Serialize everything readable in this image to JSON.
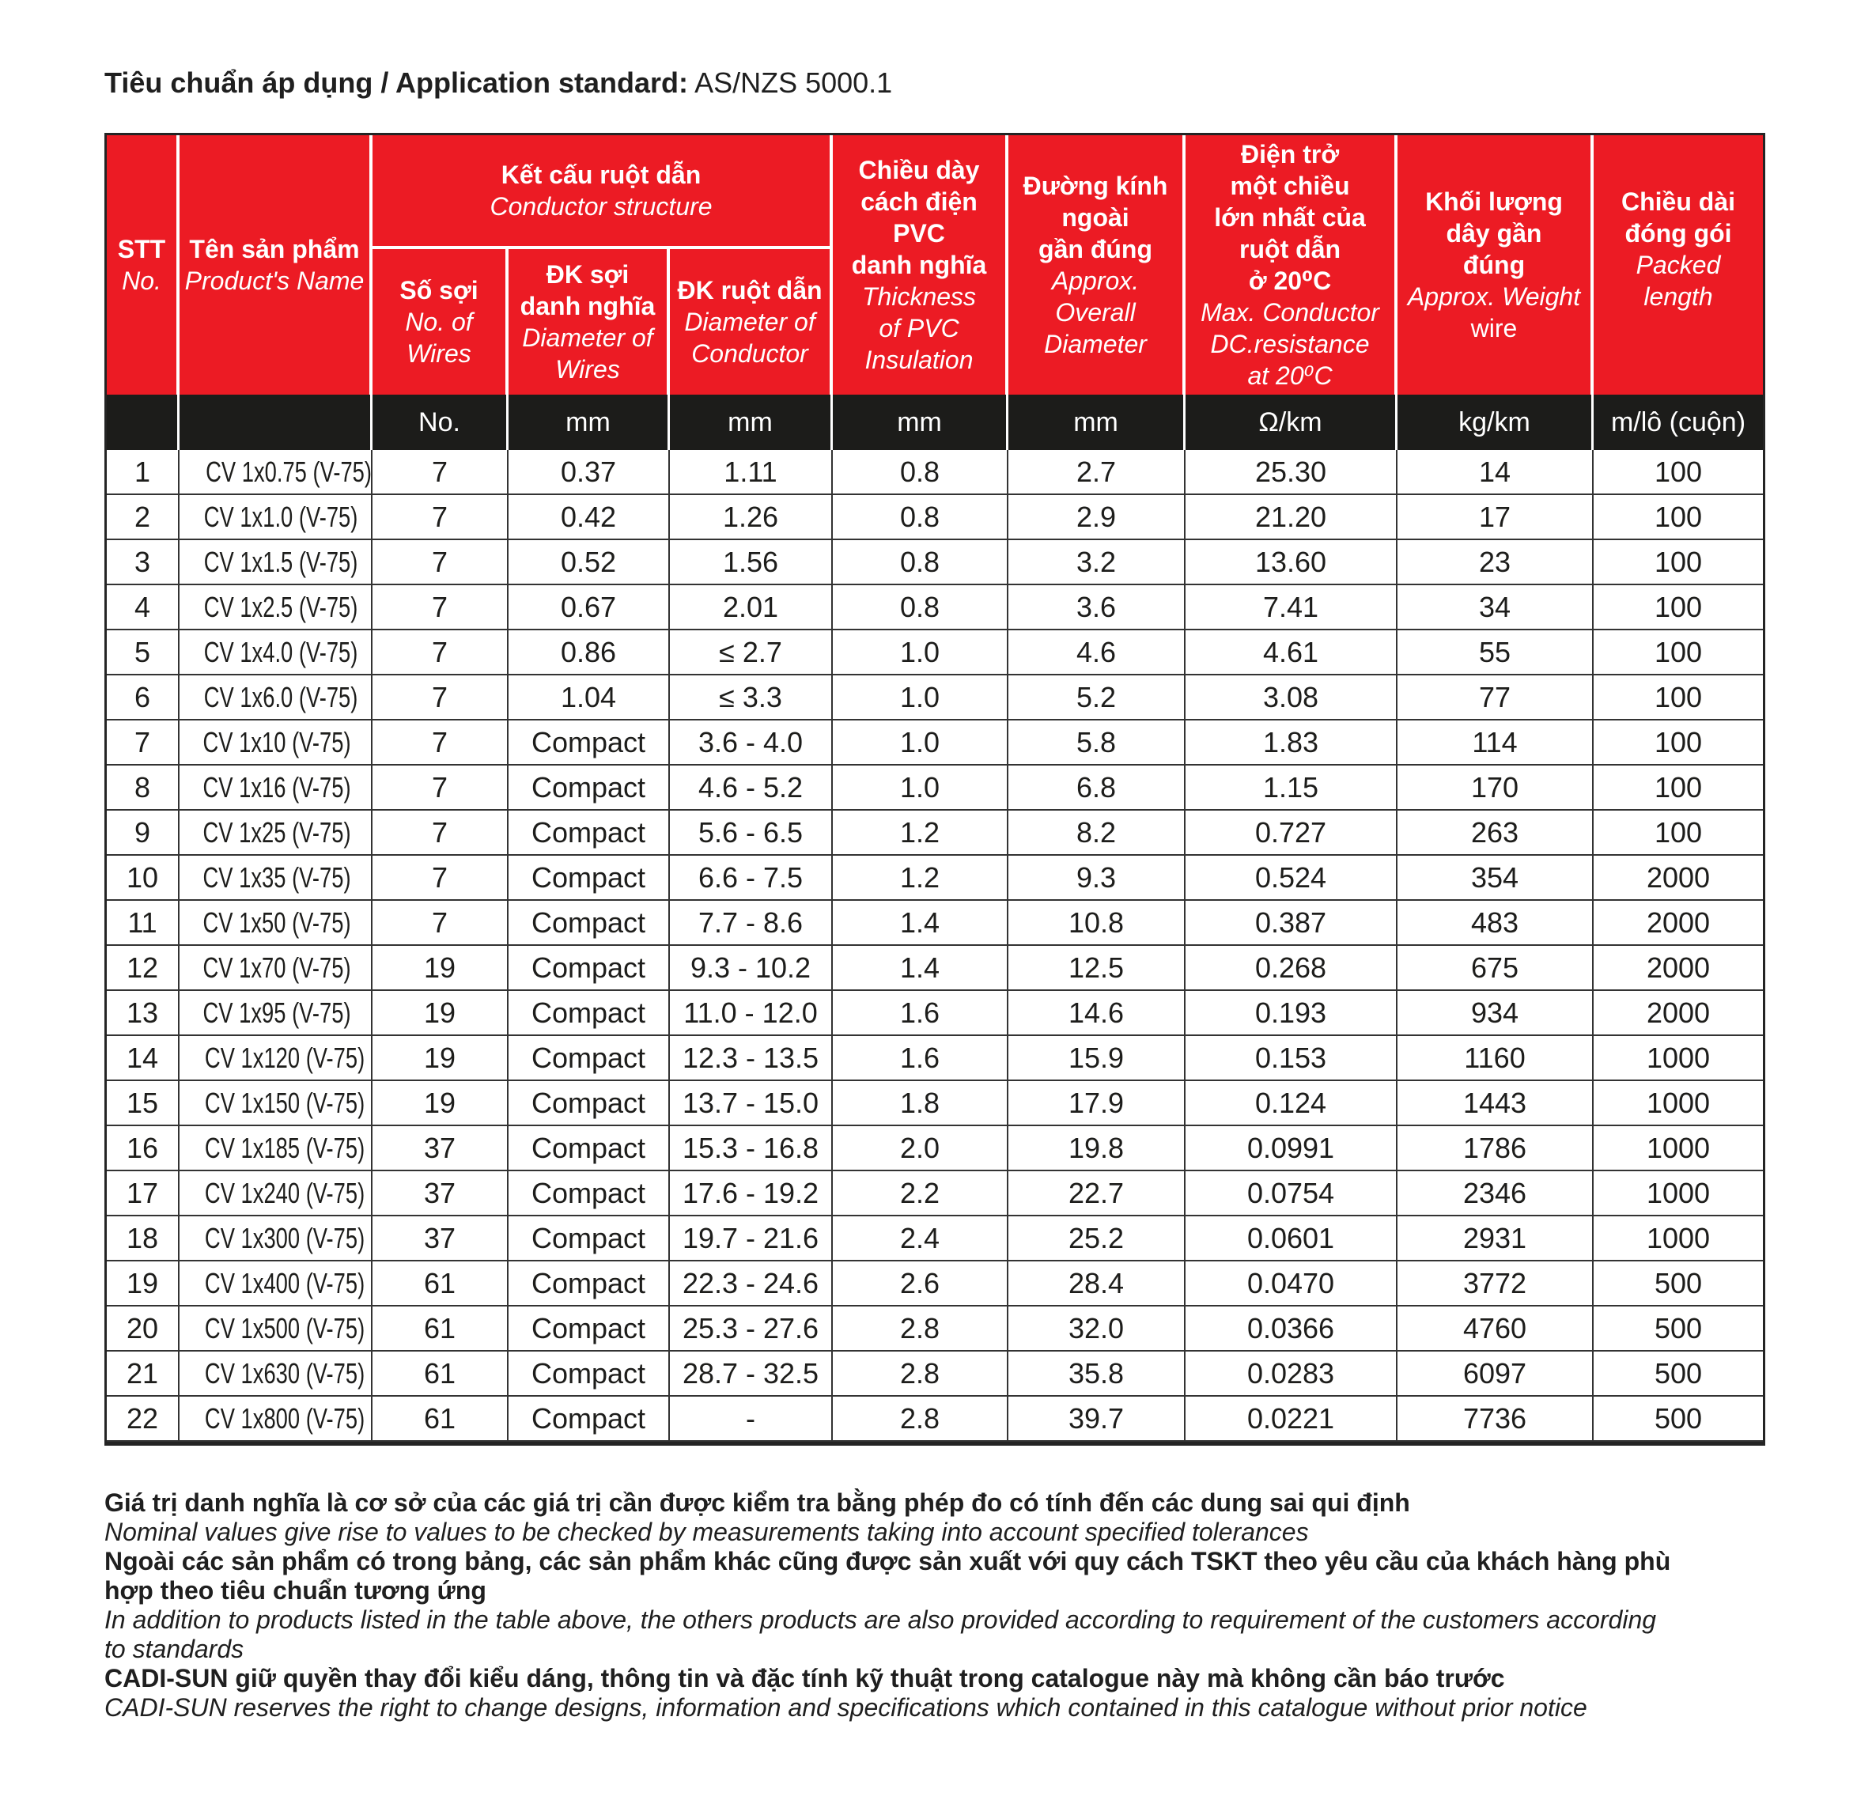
{
  "page": {
    "title_bold": "Tiêu chuẩn áp dụng / Application standard:",
    "title_rest": " AS/NZS 5000.1"
  },
  "table": {
    "header": {
      "stt": {
        "vi": "STT",
        "en": "No."
      },
      "product": {
        "vi": "Tên sản phẩm",
        "en": "Product's Name"
      },
      "conductor_group": {
        "vi": "Kết cấu ruột dẫn",
        "en": "Conductor structure"
      },
      "wires": {
        "vi": "Số sợi",
        "en": "No. of\nWires"
      },
      "wire_diameter": {
        "vi": "ĐK sợi\ndanh nghĩa",
        "en": "Diameter of\nWires"
      },
      "conductor_diameter": {
        "vi": "ĐK ruột dẫn",
        "en": "Diameter of\nConductor"
      },
      "insulation": {
        "vi": "Chiều dày\ncách điện\nPVC\ndanh nghĩa",
        "en": "Thickness\nof PVC\nInsulation"
      },
      "overall_diameter": {
        "vi": "Đường kính\nngoài\ngần đúng",
        "en": "Approx.\nOverall\nDiameter"
      },
      "resistance": {
        "vi": "Điện trở\nmột chiều\nlớn nhất của\nruột dẫn\nở 20⁰C",
        "en": "Max. Conductor\nDC.resistance\nat 20⁰C"
      },
      "weight": {
        "vi": "Khối lượng\ndây gần\nđúng",
        "en": "Approx. Weight",
        "extra": "wire"
      },
      "packed_length": {
        "vi": "Chiều dài\nđóng gói",
        "en": "Packed length"
      }
    },
    "units": [
      "",
      "",
      "No.",
      "mm",
      "mm",
      "mm",
      "mm",
      "Ω/km",
      "kg/km",
      "m/lô (cuộn)"
    ],
    "rows": [
      [
        "1",
        "CV 1x0.75 (V-75)",
        "7",
        "0.37",
        "1.11",
        "0.8",
        "2.7",
        "25.30",
        "14",
        "100"
      ],
      [
        "2",
        "CV 1x1.0 (V-75)",
        "7",
        "0.42",
        "1.26",
        "0.8",
        "2.9",
        "21.20",
        "17",
        "100"
      ],
      [
        "3",
        "CV 1x1.5 (V-75)",
        "7",
        "0.52",
        "1.56",
        "0.8",
        "3.2",
        "13.60",
        "23",
        "100"
      ],
      [
        "4",
        "CV 1x2.5 (V-75)",
        "7",
        "0.67",
        "2.01",
        "0.8",
        "3.6",
        "7.41",
        "34",
        "100"
      ],
      [
        "5",
        "CV 1x4.0 (V-75)",
        "7",
        "0.86",
        "≤ 2.7",
        "1.0",
        "4.6",
        "4.61",
        "55",
        "100"
      ],
      [
        "6",
        "CV 1x6.0 (V-75)",
        "7",
        "1.04",
        "≤ 3.3",
        "1.0",
        "5.2",
        "3.08",
        "77",
        "100"
      ],
      [
        "7",
        "CV 1x10 (V-75)",
        "7",
        "Compact",
        "3.6 - 4.0",
        "1.0",
        "5.8",
        "1.83",
        "114",
        "100"
      ],
      [
        "8",
        "CV 1x16 (V-75)",
        "7",
        "Compact",
        "4.6 - 5.2",
        "1.0",
        "6.8",
        "1.15",
        "170",
        "100"
      ],
      [
        "9",
        "CV 1x25 (V-75)",
        "7",
        "Compact",
        "5.6 - 6.5",
        "1.2",
        "8.2",
        "0.727",
        "263",
        "100"
      ],
      [
        "10",
        "CV 1x35 (V-75)",
        "7",
        "Compact",
        "6.6 - 7.5",
        "1.2",
        "9.3",
        "0.524",
        "354",
        "2000"
      ],
      [
        "11",
        "CV 1x50 (V-75)",
        "7",
        "Compact",
        "7.7 - 8.6",
        "1.4",
        "10.8",
        "0.387",
        "483",
        "2000"
      ],
      [
        "12",
        "CV 1x70 (V-75)",
        "19",
        "Compact",
        "9.3 - 10.2",
        "1.4",
        "12.5",
        "0.268",
        "675",
        "2000"
      ],
      [
        "13",
        "CV 1x95 (V-75)",
        "19",
        "Compact",
        "11.0 - 12.0",
        "1.6",
        "14.6",
        "0.193",
        "934",
        "2000"
      ],
      [
        "14",
        "CV 1x120 (V-75)",
        "19",
        "Compact",
        "12.3 - 13.5",
        "1.6",
        "15.9",
        "0.153",
        "1160",
        "1000"
      ],
      [
        "15",
        "CV 1x150 (V-75)",
        "19",
        "Compact",
        "13.7 - 15.0",
        "1.8",
        "17.9",
        "0.124",
        "1443",
        "1000"
      ],
      [
        "16",
        "CV 1x185 (V-75)",
        "37",
        "Compact",
        "15.3 - 16.8",
        "2.0",
        "19.8",
        "0.0991",
        "1786",
        "1000"
      ],
      [
        "17",
        "CV 1x240 (V-75)",
        "37",
        "Compact",
        "17.6 - 19.2",
        "2.2",
        "22.7",
        "0.0754",
        "2346",
        "1000"
      ],
      [
        "18",
        "CV 1x300 (V-75)",
        "37",
        "Compact",
        "19.7 - 21.6",
        "2.4",
        "25.2",
        "0.0601",
        "2931",
        "1000"
      ],
      [
        "19",
        "CV 1x400 (V-75)",
        "61",
        "Compact",
        "22.3 - 24.6",
        "2.6",
        "28.4",
        "0.0470",
        "3772",
        "500"
      ],
      [
        "20",
        "CV 1x500 (V-75)",
        "61",
        "Compact",
        "25.3 - 27.6",
        "2.8",
        "32.0",
        "0.0366",
        "4760",
        "500"
      ],
      [
        "21",
        "CV 1x630 (V-75)",
        "61",
        "Compact",
        "28.7 - 32.5",
        "2.8",
        "35.8",
        "0.0283",
        "6097",
        "500"
      ],
      [
        "22",
        "CV 1x800 (V-75)",
        "61",
        "Compact",
        "-",
        "2.8",
        "39.7",
        "0.0221",
        "7736",
        "500"
      ]
    ]
  },
  "colors": {
    "header_red": "#EC1B24",
    "units_black": "#1C1C1A",
    "border_dark": "#333333"
  },
  "footnotes": [
    {
      "style": "bold",
      "text": "Giá trị danh nghĩa là cơ sở của các giá trị cần được kiểm tra bằng phép đo có tính đến các dung sai qui định"
    },
    {
      "style": "italic",
      "text": "Nominal values give rise to values to be checked by measurements taking into account specified tolerances"
    },
    {
      "style": "bold",
      "text": "Ngoài các sản phẩm có trong bảng, các sản phẩm khác cũng được sản xuất với quy cách TSKT theo yêu cầu của khách hàng phù\nhợp theo tiêu chuẩn tương ứng"
    },
    {
      "style": "italic",
      "text": "In addition to products listed in the table above, the others products are also provided according to requirement of the customers according\nto standards"
    },
    {
      "style": "bold",
      "text": "CADI-SUN giữ quyền thay đổi kiểu dáng, thông tin và đặc tính kỹ thuật trong catalogue này mà không cần báo trước"
    },
    {
      "style": "italic",
      "text": "CADI-SUN reserves the right to change designs, information and specifications which contained in this catalogue without prior notice"
    }
  ]
}
